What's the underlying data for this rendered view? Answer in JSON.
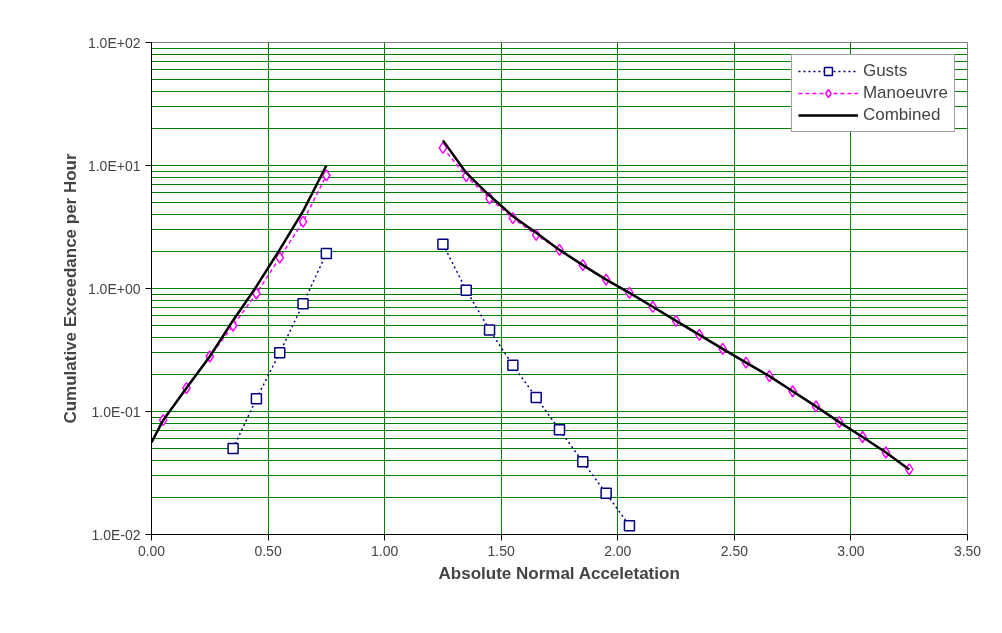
{
  "chart_data": {
    "type": "line",
    "xlabel": "Absolute Normal Acceletation",
    "ylabel": "Cumulative Exceedance per Hour",
    "log": "y",
    "grid": true,
    "legend": "top right",
    "xlim": [
      0,
      3.5
    ],
    "xticks": [
      {
        "value": 0,
        "label": "0.00"
      },
      {
        "value": 0.5,
        "label": "0.50"
      },
      {
        "value": 1,
        "label": "1.00"
      },
      {
        "value": 1.5,
        "label": "1.50"
      },
      {
        "value": 2,
        "label": "2.00"
      },
      {
        "value": 2.5,
        "label": "2.50"
      },
      {
        "value": 3,
        "label": "3.00"
      },
      {
        "value": 3.5,
        "label": "3.50"
      }
    ],
    "ylim": [
      0.01,
      100
    ],
    "yticks": [
      {
        "value": 0.01,
        "label": "1.0E-02"
      },
      {
        "value": 0.1,
        "label": "1.0E-01"
      },
      {
        "value": 1,
        "label": "1.0E+00"
      },
      {
        "value": 10,
        "label": "1.0E+01"
      },
      {
        "value": 100,
        "label": "1.0E+02"
      }
    ],
    "series": [
      {
        "name": "Gusts",
        "color": "#000080",
        "marker": "square",
        "line_style": "dotted",
        "x": [
          0.35,
          0.45,
          0.55,
          0.65,
          0.75,
          1.0,
          1.25,
          1.35,
          1.45,
          1.55,
          1.65,
          1.75,
          1.85,
          1.95,
          2.05
        ],
        "values": [
          0.05,
          0.127,
          0.3,
          0.75,
          1.93,
          null,
          2.29,
          0.97,
          0.46,
          0.238,
          0.13,
          0.071,
          0.039,
          0.0216,
          0.0118
        ]
      },
      {
        "name": "Manoeuvre",
        "color": "#ff00ff",
        "marker": "diamond",
        "line_style": "dashed",
        "x": [
          0.05,
          0.15,
          0.25,
          0.35,
          0.45,
          0.55,
          0.65,
          0.75,
          1.0,
          1.25,
          1.35,
          1.45,
          1.55,
          1.65,
          1.75,
          1.85,
          1.95,
          2.05,
          2.15,
          2.25,
          2.35,
          2.45,
          2.55,
          2.65,
          2.75,
          2.85,
          2.95,
          3.05,
          3.15,
          3.25
        ],
        "values": [
          0.085,
          0.155,
          0.28,
          0.5,
          0.91,
          1.78,
          3.5,
          8.3,
          null,
          13.9,
          8.2,
          5.4,
          3.73,
          2.73,
          2.06,
          1.55,
          1.18,
          0.92,
          0.71,
          0.546,
          0.42,
          0.323,
          0.25,
          0.194,
          0.146,
          0.11,
          0.082,
          0.062,
          0.0464,
          0.0338
        ]
      },
      {
        "name": "Combined",
        "color": "#000000",
        "marker": "none",
        "line_style": "solid",
        "x": [
          0,
          0.05,
          0.15,
          0.25,
          0.35,
          0.45,
          0.55,
          0.65,
          0.75,
          1.0,
          1.25,
          1.35,
          1.45,
          1.55,
          1.65,
          1.75,
          1.85,
          1.95,
          2.05,
          2.15,
          2.25,
          2.35,
          2.45,
          2.55,
          2.65,
          2.75,
          2.85,
          2.95,
          3.05,
          3.15,
          3.25
        ],
        "values": [
          0.056,
          0.085,
          0.155,
          0.28,
          0.55,
          1.04,
          2.07,
          4.25,
          10,
          null,
          16,
          8.7,
          5.7,
          3.87,
          2.84,
          2.06,
          1.55,
          1.18,
          0.92,
          0.71,
          0.546,
          0.42,
          0.323,
          0.25,
          0.194,
          0.146,
          0.11,
          0.082,
          0.062,
          0.0464,
          0.0338
        ]
      }
    ]
  }
}
